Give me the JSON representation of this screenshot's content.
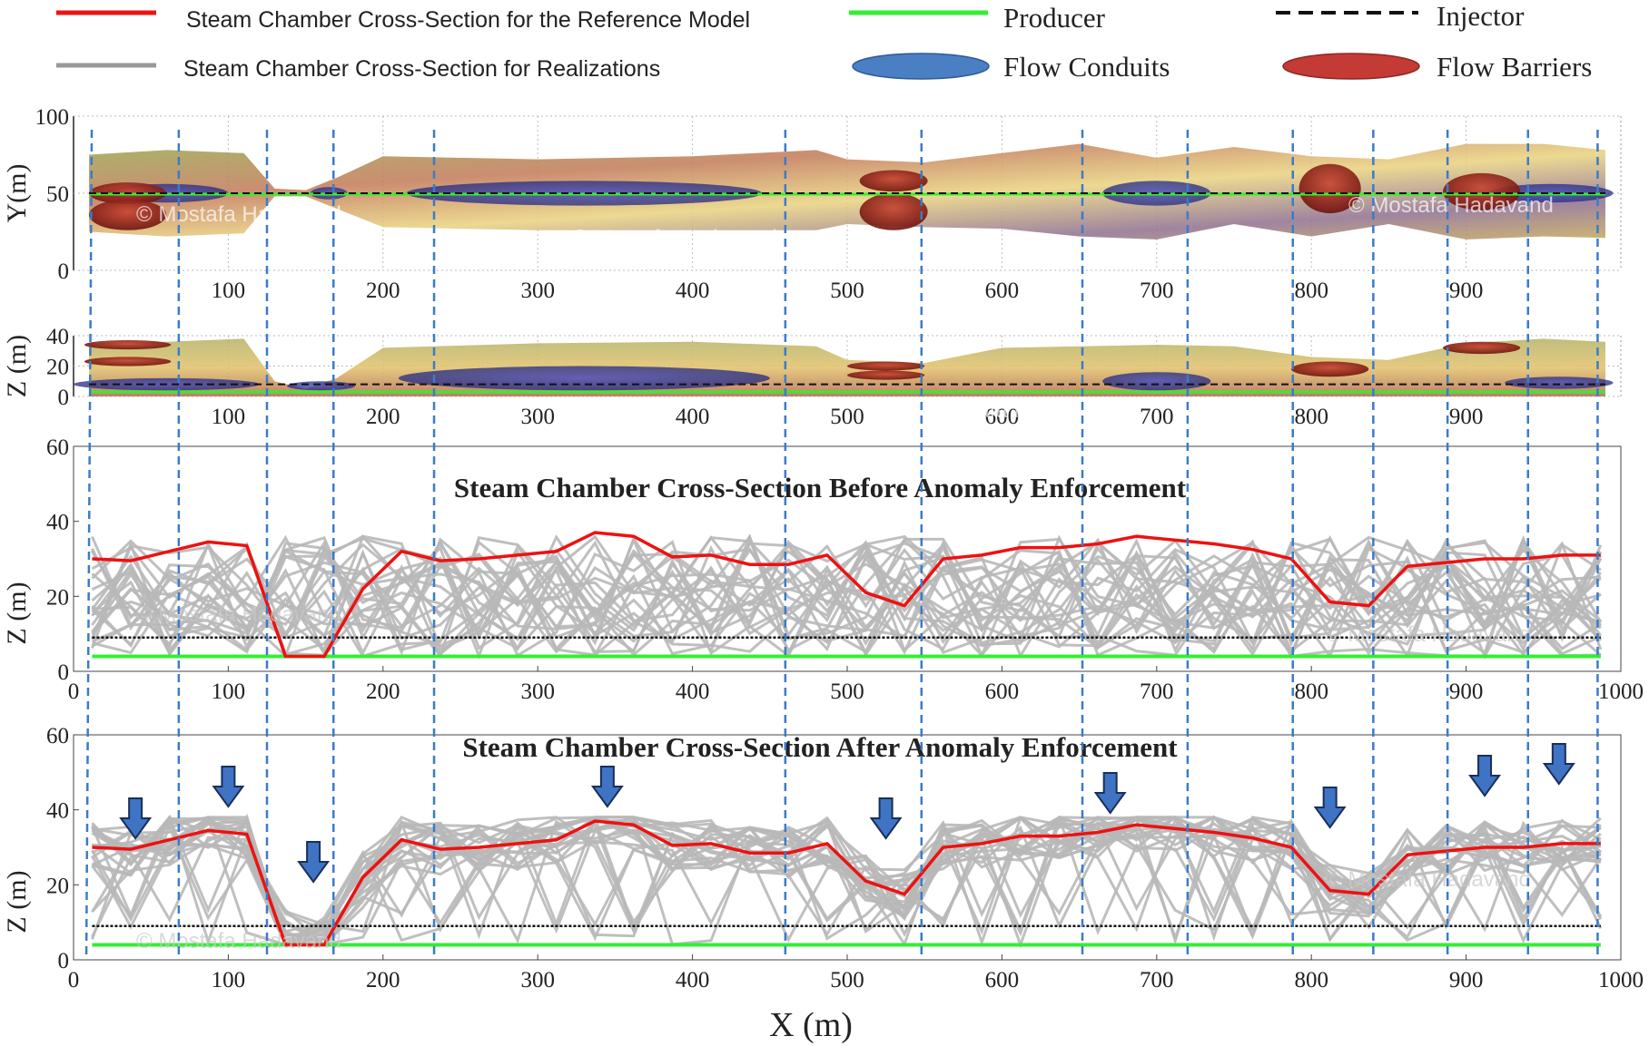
{
  "legend": {
    "reference": "Steam Chamber Cross-Section for the Reference Model",
    "realizations": "Steam Chamber Cross-Section for Realizations",
    "producer": "Producer",
    "injector": "Injector",
    "conduits": "Flow Conduits",
    "barriers": "Flow Barriers"
  },
  "watermark": "© Mostafa Hadavand",
  "colors": {
    "reference": "#ee1111",
    "realizations": "#b8b8b8",
    "producer": "#33ee33",
    "injector": "#111111",
    "conduits": "#4a7fc4",
    "barriers": "#c43a35",
    "divider": "#3a7cc9",
    "arrow": "#3f74c4"
  },
  "chart_data": [
    {
      "type": "area",
      "ylabel": "Y(m)",
      "ylim": [
        0,
        100
      ],
      "yticks": [
        "0",
        "50",
        "100"
      ],
      "xticks": [
        "100",
        "200",
        "300",
        "400",
        "500",
        "600",
        "700",
        "800",
        "900"
      ],
      "injector_y": 50,
      "outline_x": [
        10,
        60,
        110,
        130,
        150,
        170,
        200,
        300,
        400,
        480,
        500,
        550,
        600,
        650,
        700,
        750,
        800,
        850,
        900,
        950,
        990
      ],
      "outline_top": [
        75,
        78,
        76,
        53,
        52,
        60,
        74,
        72,
        74,
        78,
        72,
        70,
        76,
        82,
        73,
        80,
        74,
        72,
        82,
        82,
        78
      ],
      "outline_bottom": [
        25,
        22,
        24,
        48,
        48,
        40,
        28,
        26,
        26,
        26,
        30,
        28,
        27,
        22,
        20,
        30,
        22,
        30,
        20,
        22,
        21
      ],
      "conduits": [
        [
          60,
          50,
          40,
          6
        ],
        [
          165,
          50,
          12,
          4
        ],
        [
          330,
          50,
          115,
          8
        ],
        [
          700,
          50,
          35,
          8
        ],
        [
          955,
          50,
          40,
          6
        ]
      ],
      "barriers": [
        [
          35,
          50,
          25,
          7
        ],
        [
          35,
          36,
          25,
          10
        ],
        [
          530,
          58,
          22,
          7
        ],
        [
          530,
          38,
          22,
          12
        ],
        [
          812,
          53,
          20,
          16
        ],
        [
          910,
          51,
          25,
          12
        ]
      ]
    },
    {
      "type": "area",
      "ylabel": "Z (m)",
      "ylim": [
        0,
        40
      ],
      "yticks": [
        "0",
        "20",
        "40"
      ],
      "xticks": [
        "100",
        "200",
        "300",
        "400",
        "500",
        "600",
        "700",
        "800",
        "900"
      ],
      "injector_z": 8,
      "producer_z": 3,
      "outline_x": [
        10,
        60,
        110,
        130,
        150,
        170,
        200,
        300,
        400,
        480,
        500,
        550,
        600,
        650,
        700,
        750,
        800,
        850,
        900,
        950,
        990
      ],
      "outline_top": [
        35,
        36,
        38,
        10,
        5,
        12,
        32,
        35,
        36,
        33,
        24,
        22,
        32,
        33,
        34,
        33,
        26,
        24,
        35,
        38,
        36
      ],
      "conduits": [
        [
          60,
          8,
          60,
          4
        ],
        [
          160,
          7,
          22,
          3
        ],
        [
          330,
          12,
          120,
          8
        ],
        [
          700,
          10,
          35,
          6
        ],
        [
          960,
          9,
          35,
          4
        ]
      ],
      "barriers": [
        [
          35,
          34,
          28,
          3
        ],
        [
          35,
          23,
          28,
          3
        ],
        [
          525,
          20,
          25,
          3
        ],
        [
          525,
          14,
          25,
          3
        ],
        [
          812,
          18,
          25,
          5
        ],
        [
          910,
          32,
          25,
          4
        ]
      ]
    },
    {
      "type": "line",
      "title": "Steam Chamber Cross-Section Before Anomaly Enforcement",
      "ylabel": "Z (m)",
      "xlim": [
        0,
        1000
      ],
      "ylim": [
        0,
        60
      ],
      "xticks": [
        "0",
        "100",
        "200",
        "300",
        "400",
        "500",
        "600",
        "700",
        "800",
        "900",
        "1000"
      ],
      "yticks": [
        "0",
        "20",
        "40",
        "60"
      ],
      "injector_z": 9,
      "producer_z": 4,
      "x": [
        12,
        37,
        62,
        87,
        112,
        137,
        162,
        187,
        212,
        237,
        262,
        287,
        312,
        337,
        362,
        387,
        412,
        437,
        462,
        487,
        512,
        537,
        562,
        587,
        612,
        637,
        662,
        687,
        712,
        737,
        762,
        787,
        812,
        837,
        862,
        887,
        912,
        937,
        962,
        987
      ],
      "reference": [
        30,
        29.5,
        32,
        34.5,
        33.5,
        4,
        4,
        22,
        32,
        29.5,
        30,
        31,
        32,
        37,
        36,
        30.5,
        31,
        28.5,
        28.5,
        31,
        21,
        17.5,
        30,
        31,
        33,
        33,
        34,
        36,
        35,
        34,
        32.5,
        30,
        18.5,
        17.5,
        28,
        29,
        30,
        30,
        31,
        31
      ],
      "realization_count": 25
    },
    {
      "type": "line",
      "title": "Steam Chamber Cross-Section After Anomaly Enforcement",
      "xlabel": "X (m)",
      "ylabel": "Z (m)",
      "xlim": [
        0,
        1000
      ],
      "ylim": [
        0,
        60
      ],
      "xticks": [
        "0",
        "100",
        "200",
        "300",
        "400",
        "500",
        "600",
        "700",
        "800",
        "900",
        "1000"
      ],
      "yticks": [
        "0",
        "20",
        "40",
        "60"
      ],
      "injector_z": 9,
      "producer_z": 4,
      "x": [
        12,
        37,
        62,
        87,
        112,
        137,
        162,
        187,
        212,
        237,
        262,
        287,
        312,
        337,
        362,
        387,
        412,
        437,
        462,
        487,
        512,
        537,
        562,
        587,
        612,
        637,
        662,
        687,
        712,
        737,
        762,
        787,
        812,
        837,
        862,
        887,
        912,
        937,
        962,
        987
      ],
      "reference": [
        30,
        29.5,
        32,
        34.5,
        33.5,
        4,
        4,
        22,
        32,
        29.5,
        30,
        31,
        32,
        37,
        36,
        30.5,
        31,
        28.5,
        28.5,
        31,
        21,
        17.5,
        30,
        31,
        33,
        33,
        34,
        36,
        35,
        34,
        32.5,
        30,
        18.5,
        17.5,
        28,
        29,
        30,
        30,
        31,
        31
      ],
      "realization_count": 25,
      "arrows_x": [
        40,
        100,
        155,
        345,
        525,
        670,
        812,
        912,
        960
      ]
    }
  ],
  "section_dividers_x": [
    10,
    68,
    125,
    168,
    233,
    460,
    548,
    652,
    720,
    788,
    840,
    888,
    940,
    985
  ]
}
